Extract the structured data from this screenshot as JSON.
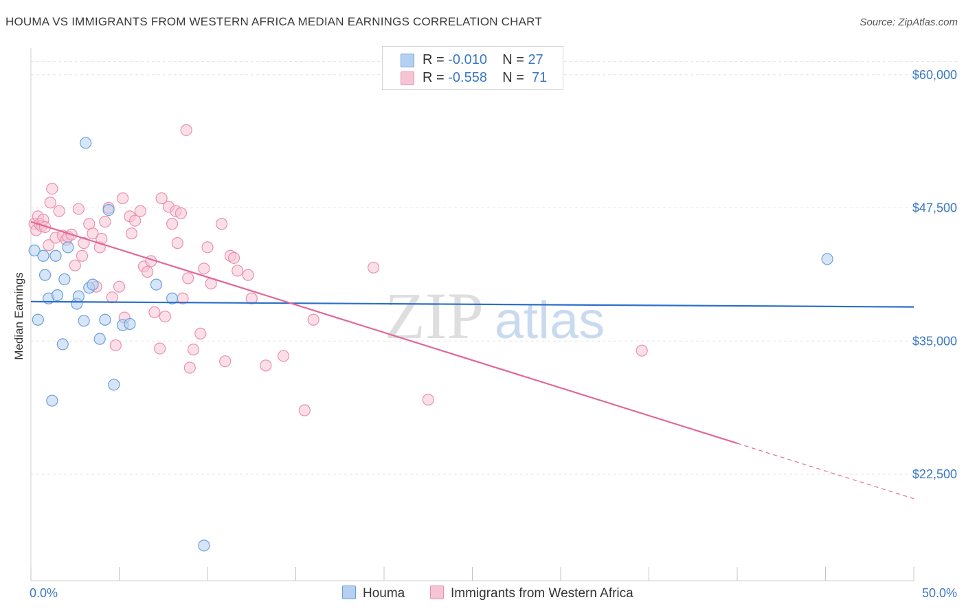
{
  "header": {
    "title": "HOUMA VS IMMIGRANTS FROM WESTERN AFRICA MEDIAN EARNINGS CORRELATION CHART",
    "source": "Source: ZipAtlas.com"
  },
  "legend": {
    "houma": {
      "r_label": "R = ",
      "r_value": "-0.010",
      "n_label": "N = ",
      "n_value": "27"
    },
    "wafrica": {
      "r_label": "R = ",
      "r_value": "-0.558",
      "n_label": "N = ",
      "n_value": "71"
    }
  },
  "watermark": {
    "zip": "ZIP",
    "atlas": "atlas"
  },
  "colors": {
    "houma_fill": "#b6d0f2",
    "houma_stroke": "#6a9fdc",
    "houma_line": "#2a6fc9",
    "wafrica_fill": "#f7c4d4",
    "wafrica_stroke": "#ea8fae",
    "wafrica_line": "#e2669a",
    "tick_text": "#3b78c4",
    "grid": "#e3e3e3"
  },
  "chart_data": {
    "type": "scatter",
    "title": "HOUMA VS IMMIGRANTS FROM WESTERN AFRICA MEDIAN EARNINGS CORRELATION CHART",
    "xlabel": "",
    "ylabel": "Median Earnings",
    "xlim": [
      0,
      50
    ],
    "ylim": [
      12500,
      62500
    ],
    "x_tick_labels": [
      "0.0%",
      "50.0%"
    ],
    "y_ticks": [
      22500,
      35000,
      47500,
      60000
    ],
    "y_tick_labels": [
      "$22,500",
      "$35,000",
      "$47,500",
      "$60,000"
    ],
    "grid": true,
    "legend_position": "top-center",
    "series": [
      {
        "name": "Houma",
        "points": [
          [
            0.2,
            43500
          ],
          [
            0.4,
            37000
          ],
          [
            0.7,
            43000
          ],
          [
            0.8,
            41200
          ],
          [
            1.0,
            39000
          ],
          [
            1.2,
            29400
          ],
          [
            1.4,
            43000
          ],
          [
            1.5,
            39300
          ],
          [
            1.8,
            34700
          ],
          [
            1.9,
            40800
          ],
          [
            2.1,
            43800
          ],
          [
            2.6,
            38500
          ],
          [
            2.7,
            39200
          ],
          [
            3.0,
            36900
          ],
          [
            3.1,
            53600
          ],
          [
            3.3,
            40000
          ],
          [
            3.5,
            40300
          ],
          [
            3.9,
            35200
          ],
          [
            4.2,
            37000
          ],
          [
            4.4,
            47300
          ],
          [
            4.7,
            30900
          ],
          [
            5.2,
            36500
          ],
          [
            5.6,
            36600
          ],
          [
            7.1,
            40300
          ],
          [
            8.0,
            39000
          ],
          [
            9.8,
            15800
          ],
          [
            45.1,
            42700
          ]
        ],
        "trend": {
          "x": [
            0,
            50
          ],
          "y": [
            38700,
            38200
          ]
        }
      },
      {
        "name": "Immigrants from Western Africa",
        "points": [
          [
            0.2,
            46000
          ],
          [
            0.3,
            45400
          ],
          [
            0.4,
            46700
          ],
          [
            0.5,
            46000
          ],
          [
            0.6,
            45800
          ],
          [
            0.7,
            46400
          ],
          [
            0.8,
            45700
          ],
          [
            1.0,
            44000
          ],
          [
            1.1,
            48000
          ],
          [
            1.2,
            49300
          ],
          [
            1.4,
            44700
          ],
          [
            1.6,
            47200
          ],
          [
            1.8,
            44900
          ],
          [
            2.0,
            44500
          ],
          [
            2.1,
            44800
          ],
          [
            2.3,
            45000
          ],
          [
            2.5,
            42100
          ],
          [
            2.7,
            47400
          ],
          [
            2.9,
            43000
          ],
          [
            3.0,
            44200
          ],
          [
            3.3,
            46000
          ],
          [
            3.5,
            45100
          ],
          [
            3.7,
            40100
          ],
          [
            3.9,
            43800
          ],
          [
            4.0,
            44600
          ],
          [
            4.2,
            46200
          ],
          [
            4.4,
            47500
          ],
          [
            4.6,
            39100
          ],
          [
            4.8,
            34600
          ],
          [
            5.0,
            40100
          ],
          [
            5.2,
            48400
          ],
          [
            5.3,
            37200
          ],
          [
            5.6,
            46700
          ],
          [
            5.7,
            45100
          ],
          [
            5.9,
            46300
          ],
          [
            6.2,
            47200
          ],
          [
            6.4,
            42000
          ],
          [
            6.6,
            41500
          ],
          [
            6.8,
            42500
          ],
          [
            7.0,
            37700
          ],
          [
            7.3,
            34300
          ],
          [
            7.4,
            48400
          ],
          [
            7.6,
            37300
          ],
          [
            7.8,
            47600
          ],
          [
            8.0,
            46000
          ],
          [
            8.2,
            47200
          ],
          [
            8.3,
            44200
          ],
          [
            8.5,
            47000
          ],
          [
            8.6,
            39000
          ],
          [
            8.9,
            40900
          ],
          [
            9.0,
            32500
          ],
          [
            9.2,
            34200
          ],
          [
            9.6,
            35700
          ],
          [
            9.8,
            41800
          ],
          [
            10.0,
            43800
          ],
          [
            10.2,
            40400
          ],
          [
            10.8,
            46000
          ],
          [
            11.0,
            33100
          ],
          [
            11.3,
            43000
          ],
          [
            11.5,
            42800
          ],
          [
            11.7,
            41600
          ],
          [
            12.3,
            41200
          ],
          [
            12.5,
            39000
          ],
          [
            13.3,
            32700
          ],
          [
            14.3,
            33600
          ],
          [
            15.5,
            28500
          ],
          [
            16.0,
            37000
          ],
          [
            19.4,
            41900
          ],
          [
            22.5,
            29500
          ],
          [
            34.6,
            34100
          ],
          [
            8.8,
            54800
          ]
        ],
        "trend": {
          "x": [
            0,
            40
          ],
          "y": [
            46200,
            25400
          ]
        },
        "trend_dashed": {
          "x": [
            40,
            50
          ],
          "y": [
            25400,
            20200
          ]
        }
      }
    ]
  },
  "bottom_legend": {
    "houma": "Houma",
    "wafrica": "Immigrants from Western Africa"
  }
}
